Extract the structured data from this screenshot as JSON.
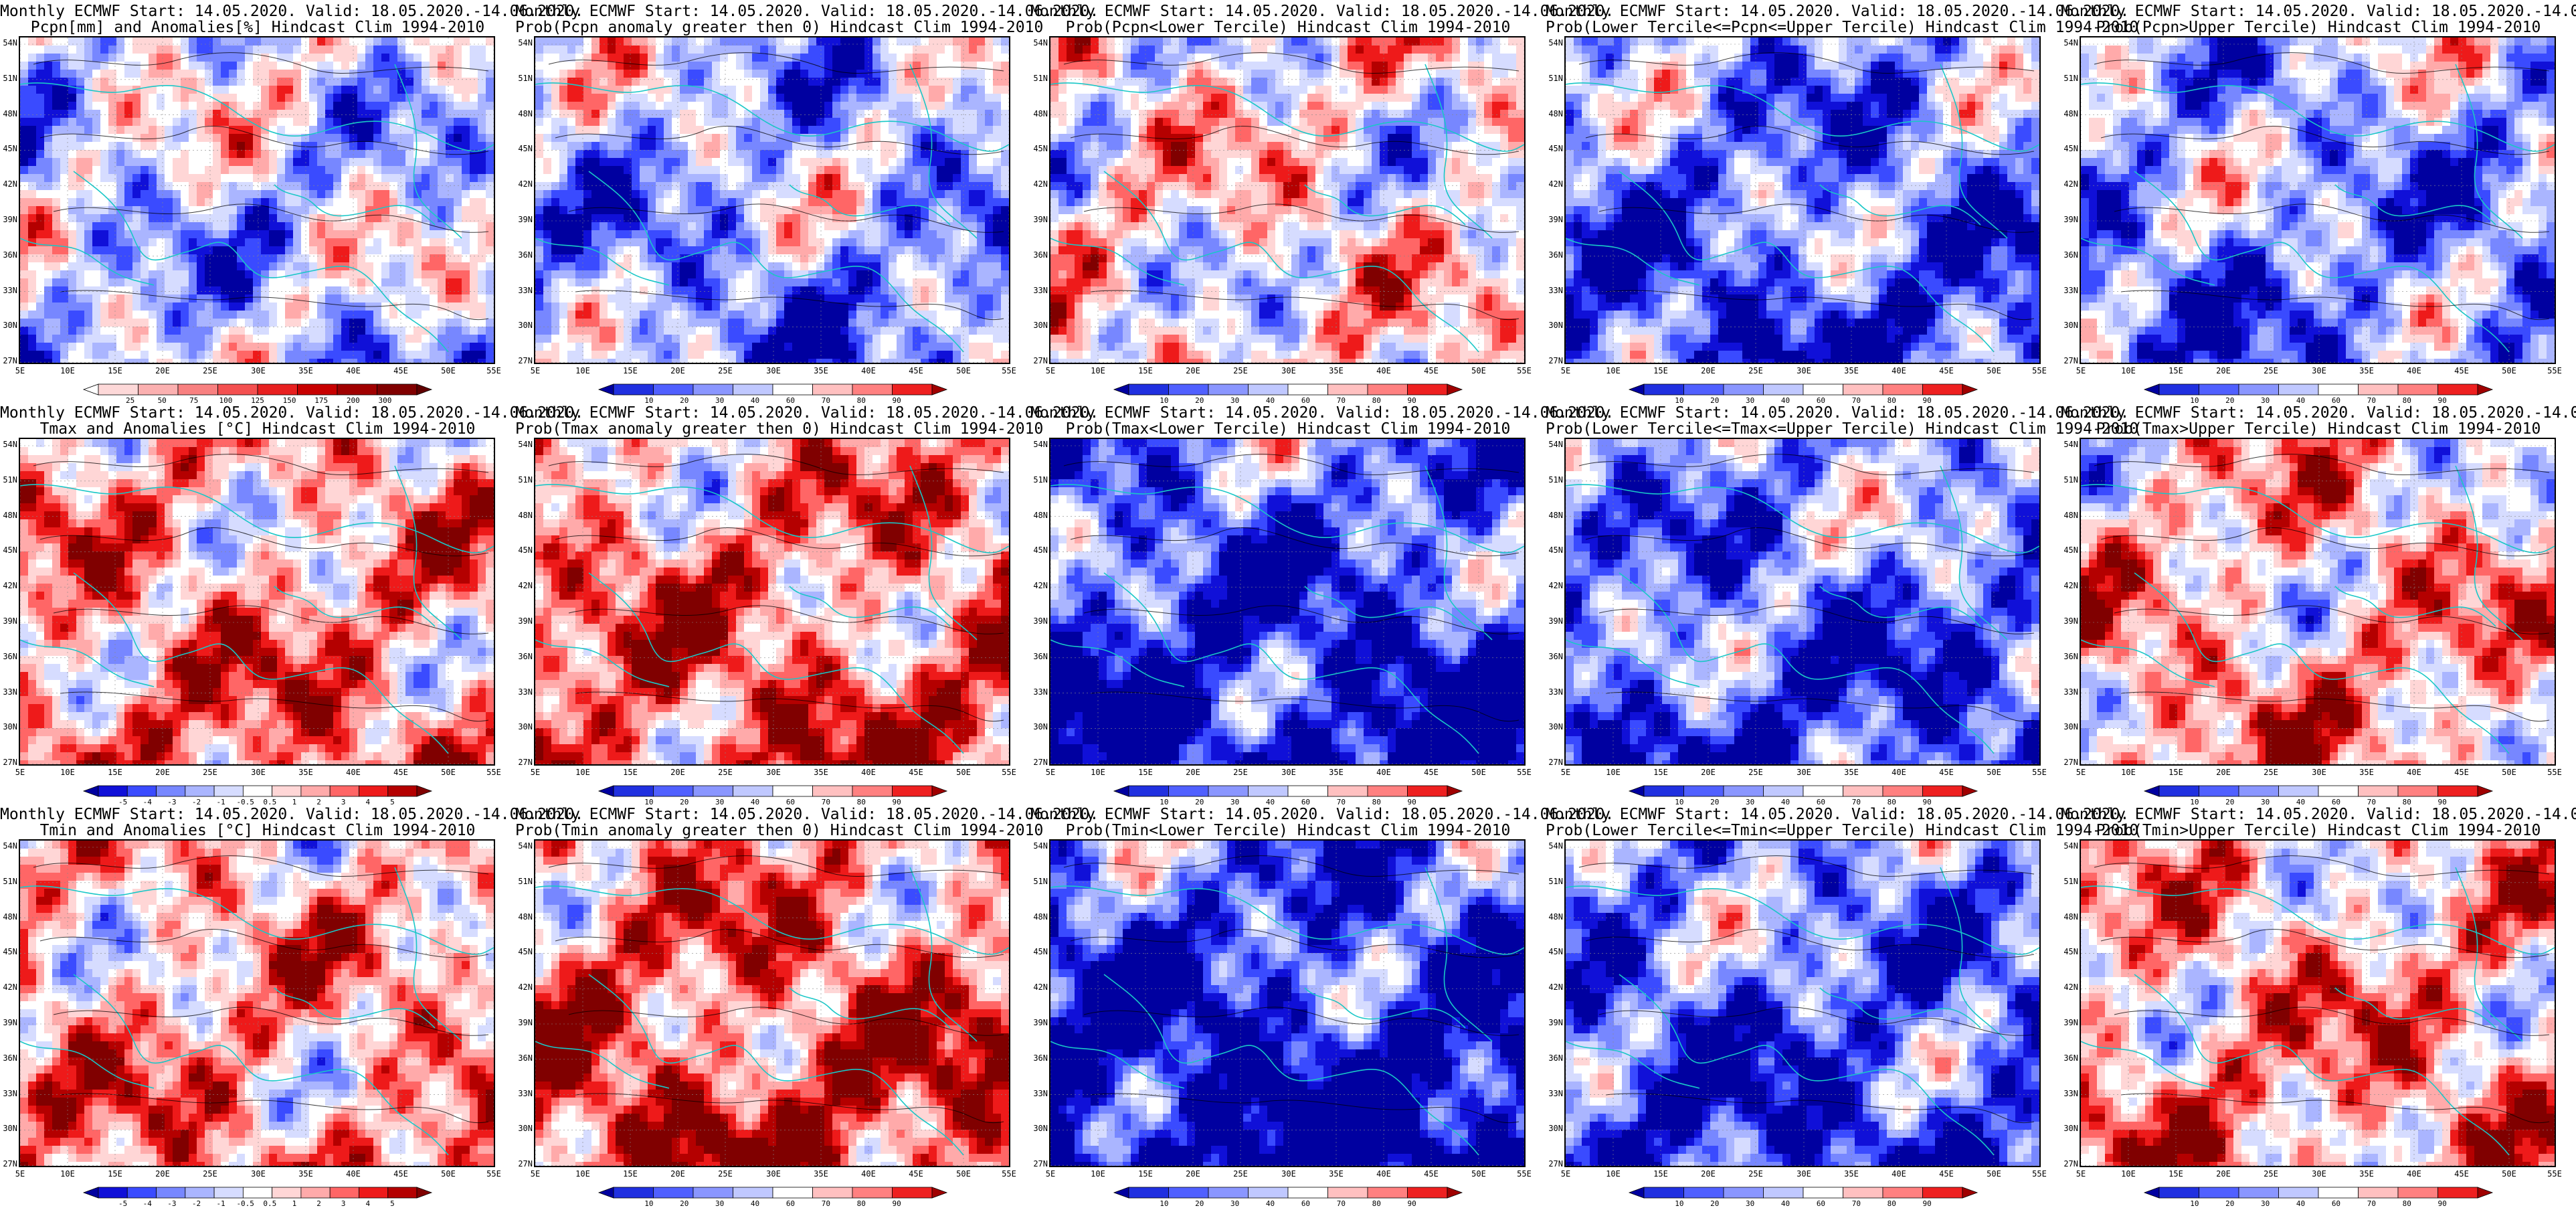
{
  "title_line1": "Monthly ECMWF Start: 14.05.2020. Valid: 18.05.2020.-14.06.2020.",
  "lat_labels": [
    "54N",
    "51N",
    "48N",
    "45N",
    "42N",
    "39N",
    "36N",
    "33N",
    "30N",
    "27N"
  ],
  "lon_labels": [
    "5E",
    "10E",
    "15E",
    "20E",
    "25E",
    "30E",
    "35E",
    "40E",
    "45E",
    "50E",
    "55E"
  ],
  "colorbars": {
    "pcpn": [
      "25",
      "50",
      "75",
      "100",
      "125",
      "150",
      "175",
      "200",
      "300"
    ],
    "temp": [
      "-5",
      "-4",
      "-3",
      "-2",
      "-1",
      "-0.5",
      "0.5",
      "1",
      "2",
      "3",
      "4",
      "5"
    ],
    "prob": [
      "10",
      "20",
      "30",
      "40",
      "60",
      "70",
      "80",
      "90"
    ]
  },
  "panels": [
    {
      "title": "Pcpn[mm] and Anomalies[%] Hindcast Clim 1994-2010",
      "cbar": "pcpn",
      "bias": -0.2
    },
    {
      "title": "Prob(Pcpn anomaly greater then 0) Hindcast Clim 1994-2010",
      "cbar": "prob",
      "bias": -0.35
    },
    {
      "title": "Prob(Pcpn<Lower Tercile) Hindcast Clim 1994-2010",
      "cbar": "prob",
      "bias": 0.05
    },
    {
      "title": "Prob(Lower Tercile<=Pcpn<=Upper Tercile) Hindcast Clim 1994-2010",
      "cbar": "prob",
      "bias": -0.55
    },
    {
      "title": "Prob(Pcpn>Upper Tercile) Hindcast Clim 1994-2010",
      "cbar": "prob",
      "bias": -0.4
    },
    {
      "title": "Tmax and Anomalies [°C] Hindcast Clim 1994-2010",
      "cbar": "temp",
      "bias": 0.35
    },
    {
      "title": "Prob(Tmax anomaly greater then 0) Hindcast Clim 1994-2010",
      "cbar": "prob",
      "bias": 0.45
    },
    {
      "title": "Prob(Tmax<Lower Tercile) Hindcast Clim 1994-2010",
      "cbar": "prob",
      "bias": -0.75
    },
    {
      "title": "Prob(Lower Tercile<=Tmax<=Upper Tercile) Hindcast Clim 1994-2010",
      "cbar": "prob",
      "bias": -0.55
    },
    {
      "title": "Prob(Tmax>Upper Tercile) Hindcast Clim 1994-2010",
      "cbar": "prob",
      "bias": 0.25
    },
    {
      "title": "Tmin and Anomalies [°C] Hindcast Clim 1994-2010",
      "cbar": "temp",
      "bias": 0.3
    },
    {
      "title": "Prob(Tmin anomaly greater then 0) Hindcast Clim 1994-2010",
      "cbar": "prob",
      "bias": 0.55
    },
    {
      "title": "Prob(Tmin<Lower Tercile) Hindcast Clim 1994-2010",
      "cbar": "prob",
      "bias": -0.85
    },
    {
      "title": "Prob(Lower Tercile<=Tmin<=Upper Tercile) Hindcast Clim 1994-2010",
      "cbar": "prob",
      "bias": -0.6
    },
    {
      "title": "Prob(Tmin>Upper Tercile) Hindcast Clim 1994-2010",
      "cbar": "prob",
      "bias": 0.3
    }
  ]
}
